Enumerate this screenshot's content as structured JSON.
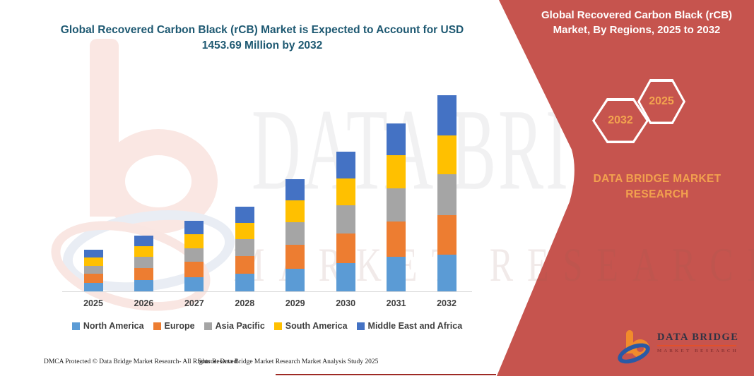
{
  "title": "Global Recovered Carbon Black (rCB) Market is Expected to Account for USD 1453.69 Million by 2032",
  "side_panel": {
    "heading": "Global Recovered Carbon Black (rCB) Market, By Regions, 2025 to 2032",
    "hexagon_left": "2032",
    "hexagon_right": "2025",
    "brand_text": "DATA BRIDGE MARKET RESEARCH",
    "panel_color": "#C6544E",
    "accent_text_color": "#F2A14E"
  },
  "chart_data": {
    "type": "bar",
    "stacked": true,
    "title": "Global Recovered Carbon Black (rCB) Market is Expected to Account for USD 1453.69 Million by 2032",
    "unit": "USD Million",
    "xlabel": "",
    "ylabel": "",
    "gridlines": false,
    "y_axis_visible": false,
    "legend_position": "bottom",
    "categories": [
      "2025",
      "2026",
      "2027",
      "2028",
      "2029",
      "2030",
      "2031",
      "2032"
    ],
    "series": [
      {
        "name": "North America",
        "color": "#5B9BD5",
        "values": [
          64,
          85,
          107,
          129,
          170,
          212,
          254,
          273.69
        ]
      },
      {
        "name": "Europe",
        "color": "#ED7D31",
        "values": [
          66,
          88,
          111,
          133,
          176,
          219,
          262,
          291
        ]
      },
      {
        "name": "Asia Pacific",
        "color": "#A5A5A5",
        "values": [
          61,
          82,
          103,
          124,
          164,
          205,
          247,
          301
        ]
      },
      {
        "name": "South America",
        "color": "#FFC000",
        "values": [
          61,
          81,
          102,
          123,
          162,
          203,
          245,
          291
        ]
      },
      {
        "name": "Middle East and Africa",
        "color": "#4472C4",
        "values": [
          58,
          78,
          99,
          119,
          157,
          197,
          237,
          297
        ]
      }
    ],
    "totals": [
      310,
      414,
      522,
      628,
      829,
      1036,
      1245,
      1453.69
    ],
    "highlighted_value": 1453.69
  },
  "watermark": {
    "line1": "DATA BRIDGE",
    "line2": "MARKET RESEARCH"
  },
  "logo": {
    "name": "DATA BRIDGE",
    "subtitle": "MARKET RESEARCH"
  },
  "footer": {
    "left": "DMCA Protected © Data Bridge Market Research-  All Rights Reserved.",
    "source": "Source: Data Bridge Market Research  Market Analysis Study 2025"
  }
}
